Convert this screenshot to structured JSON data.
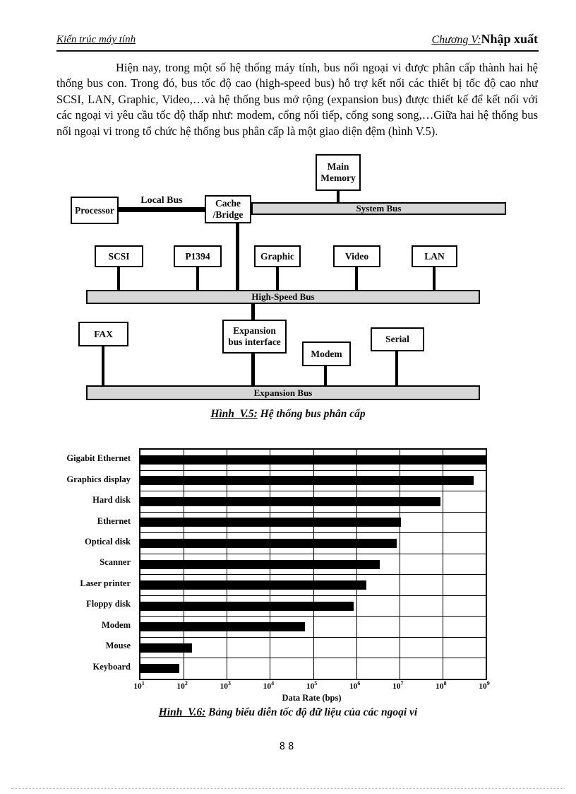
{
  "header": {
    "left": "Kiến trúc máy tính",
    "right_chapter": "Chương V:",
    "right_section": "Nhập xuất"
  },
  "paragraph": "Hiện nay, trong một số hệ thống máy tính, bus nối ngoại vi được phân cấp thành hai hệ thống bus con. Trong đó, bus tốc độ cao (high-speed bus) hỗ trợ kết nối các thiết bị tốc độ cao như SCSI, LAN, Graphic, Video,…và hệ thống bus mở rộng (expansion bus) được thiết kế để kết nối với các ngoại vi yêu cầu tốc độ thấp như: modem, cổng nối tiếp, cổng song song,…Giữa hai hệ thống bus nối ngoại vi trong tổ chức hệ thống bus phân cấp là một giao diện đệm (hình V.5).",
  "diagram": {
    "boxes": {
      "main_memory": "Main\nMemory",
      "processor": "Processor",
      "cache_bridge": "Cache\n/Bridge",
      "scsi": "SCSI",
      "p1394": "P1394",
      "graphic": "Graphic",
      "video": "Video",
      "lan": "LAN",
      "fax": "FAX",
      "expansion_interface": "Expansion\nbus interface",
      "modem": "Modem",
      "serial": "Serial"
    },
    "buses": {
      "local": "Local Bus",
      "system": "System Bus",
      "high_speed": "High-Speed Bus",
      "expansion": "Expansion Bus"
    }
  },
  "captions": {
    "fig5_label": "Hình  V.5:",
    "fig5_text": " Hệ thống bus phân cấp",
    "fig6_label": "Hình  V.6:",
    "fig6_text": " Bảng biểu diễn tốc độ dữ liệu của các ngoại vi"
  },
  "chart_data": {
    "type": "bar",
    "orientation": "horizontal",
    "title": "",
    "xlabel": "Data Rate (bps)",
    "ylabel": "",
    "x_scale": "log10",
    "xlim_log10": [
      1,
      9
    ],
    "x_tick_base": "10",
    "x_tick_exponents": [
      1,
      2,
      3,
      4,
      5,
      6,
      7,
      8,
      9
    ],
    "grid": true,
    "categories": [
      "Gigabit Ethernet",
      "Graphics display",
      "Hard disk",
      "Ethernet",
      "Optical disk",
      "Scanner",
      "Laser printer",
      "Floppy disk",
      "Modem",
      "Mouse",
      "Keyboard"
    ],
    "log10_values": [
      9.0,
      8.72,
      7.95,
      7.03,
      6.94,
      6.55,
      6.24,
      5.94,
      4.81,
      2.2,
      1.9
    ],
    "values_bps": [
      1000000000,
      520000000,
      90000000,
      10700000,
      8700000,
      3500000,
      1700000,
      870000,
      64000,
      160,
      80
    ],
    "bar_color": "#000000"
  },
  "page_number": "88"
}
